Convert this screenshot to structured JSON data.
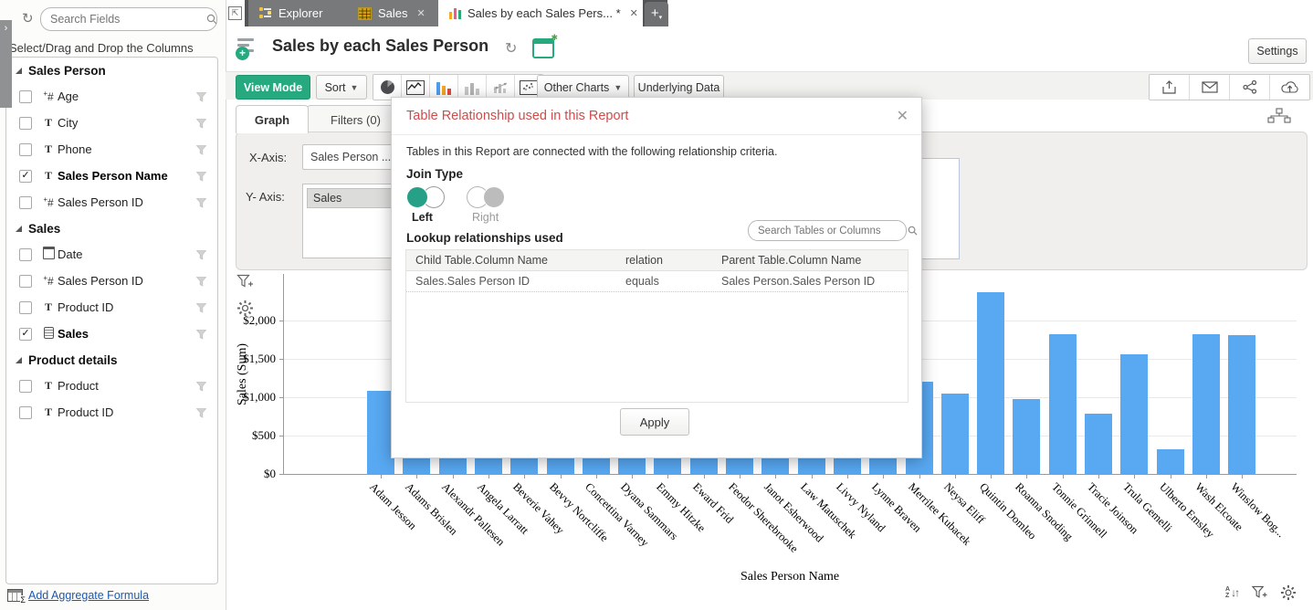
{
  "colors": {
    "accent_teal": "#26a97f",
    "bar_blue": "#58a8f2",
    "dialog_title_red": "#cf4b4b",
    "tab_icon_yellow": "#e9c94d",
    "report_icon": [
      "#f5a623",
      "#e85d8a",
      "#2aa876"
    ]
  },
  "sidebar": {
    "collapse_chevron": "›",
    "search_placeholder": "Search Fields",
    "hint": "Select/Drag and Drop the Columns",
    "sections": [
      {
        "title": "Sales Person",
        "items": [
          {
            "icon": "number",
            "label": "Age",
            "checked": false,
            "bold": false
          },
          {
            "icon": "text",
            "label": "City",
            "checked": false,
            "bold": false
          },
          {
            "icon": "text",
            "label": "Phone",
            "checked": false,
            "bold": false
          },
          {
            "icon": "text",
            "label": "Sales Person Name",
            "checked": true,
            "bold": true
          },
          {
            "icon": "number",
            "label": "Sales Person ID",
            "checked": false,
            "bold": false
          }
        ]
      },
      {
        "title": "Sales",
        "items": [
          {
            "icon": "date",
            "label": "Date",
            "checked": false,
            "bold": false
          },
          {
            "icon": "number",
            "label": "Sales Person ID",
            "checked": false,
            "bold": false
          },
          {
            "icon": "text",
            "label": "Product ID",
            "checked": false,
            "bold": false
          },
          {
            "icon": "currency",
            "label": "Sales",
            "checked": true,
            "bold": true
          }
        ]
      },
      {
        "title": "Product details",
        "items": [
          {
            "icon": "text",
            "label": "Product",
            "checked": false,
            "bold": false
          },
          {
            "icon": "text",
            "label": "Product ID",
            "checked": false,
            "bold": false
          }
        ]
      }
    ],
    "add_formula_label": "Add Aggregate Formula"
  },
  "tabs": {
    "explorer": "Explorer",
    "sales": "Sales",
    "report": "Sales by each Sales Pers... *",
    "close_glyph": "✕",
    "new_tab": "+"
  },
  "header": {
    "title": "Sales by each Sales Person",
    "settings_label": "Settings"
  },
  "toolbar": {
    "view_mode": "View Mode",
    "sort": "Sort",
    "other_charts": "Other Charts",
    "underlying_data": "Underlying Data",
    "chart_type_icons": [
      "pie",
      "line",
      "bar-colored-active",
      "bar-gray",
      "combo",
      "scatter"
    ],
    "share_icons": [
      "export",
      "email",
      "share",
      "publish-cloud"
    ]
  },
  "subtabs": {
    "graph": "Graph",
    "filters": "Filters (0)"
  },
  "axis_panel": {
    "x_label": "X-Axis:",
    "x_value": "Sales Person ...",
    "y_label": "Y- Axis:",
    "y_value": "Sales"
  },
  "dialog": {
    "title": "Table Relationship used in this Report",
    "close_glyph": "✕",
    "description": "Tables in this Report are connected with the following relationship criteria.",
    "join_type_label": "Join Type",
    "join_options": [
      {
        "label": "Left",
        "selected": true
      },
      {
        "label": "Right",
        "selected": false
      }
    ],
    "lookup_label": "Lookup relationships used",
    "search_placeholder": "Search Tables or Columns",
    "table": {
      "headers": [
        "Child Table.Column Name",
        "relation",
        "Parent Table.Column Name"
      ],
      "rows": [
        [
          "Sales.Sales Person ID",
          "equals",
          "Sales Person.Sales Person ID"
        ]
      ]
    },
    "apply_label": "Apply"
  },
  "chart_data": {
    "type": "bar",
    "xlabel": "Sales Person Name",
    "ylabel": "Sales (Sum)",
    "bar_color": "#58a8f2",
    "ylim": [
      0,
      2600
    ],
    "grid": true,
    "yticks": [
      {
        "value": 0,
        "label": "$0"
      },
      {
        "value": 500,
        "label": "$500"
      },
      {
        "value": 1000,
        "label": "$1,000"
      },
      {
        "value": 1500,
        "label": "$1,500"
      },
      {
        "value": 2000,
        "label": "$2,000"
      }
    ],
    "categories": [
      "Adam Jesson",
      "Adams Brislen",
      "Alexandr Pallesen",
      "Angela Larratt",
      "Beverie Vahey",
      "Bevvy Nortcliffe",
      "Concettina Varney",
      "Dyana Sammars",
      "Emmy Hitzke",
      "Eward Frid",
      "Feodor Sherebrooke",
      "Janot Esherwood",
      "Law Matuschek",
      "Livvy Nyland",
      "Lynne Braven",
      "Merrilee Kubacek",
      "Neysa Eliff",
      "Quintin Domleo",
      "Roanna Snoding",
      "Tonnie Grinnell",
      "Tracie Joinson",
      "Trula Gemelli",
      "Ulberto Emsley",
      "Wash Elcoate",
      "Winslow Bog..."
    ],
    "values": [
      1080,
      null,
      null,
      null,
      null,
      null,
      null,
      null,
      null,
      null,
      null,
      null,
      null,
      null,
      null,
      1200,
      1050,
      2360,
      970,
      1820,
      780,
      1550,
      320,
      1820,
      1810
    ],
    "values_note": "null = bar occluded by the dialog; only its base stub is visible"
  },
  "footer_icons": [
    "sort-az",
    "add-filter",
    "settings-gear"
  ]
}
